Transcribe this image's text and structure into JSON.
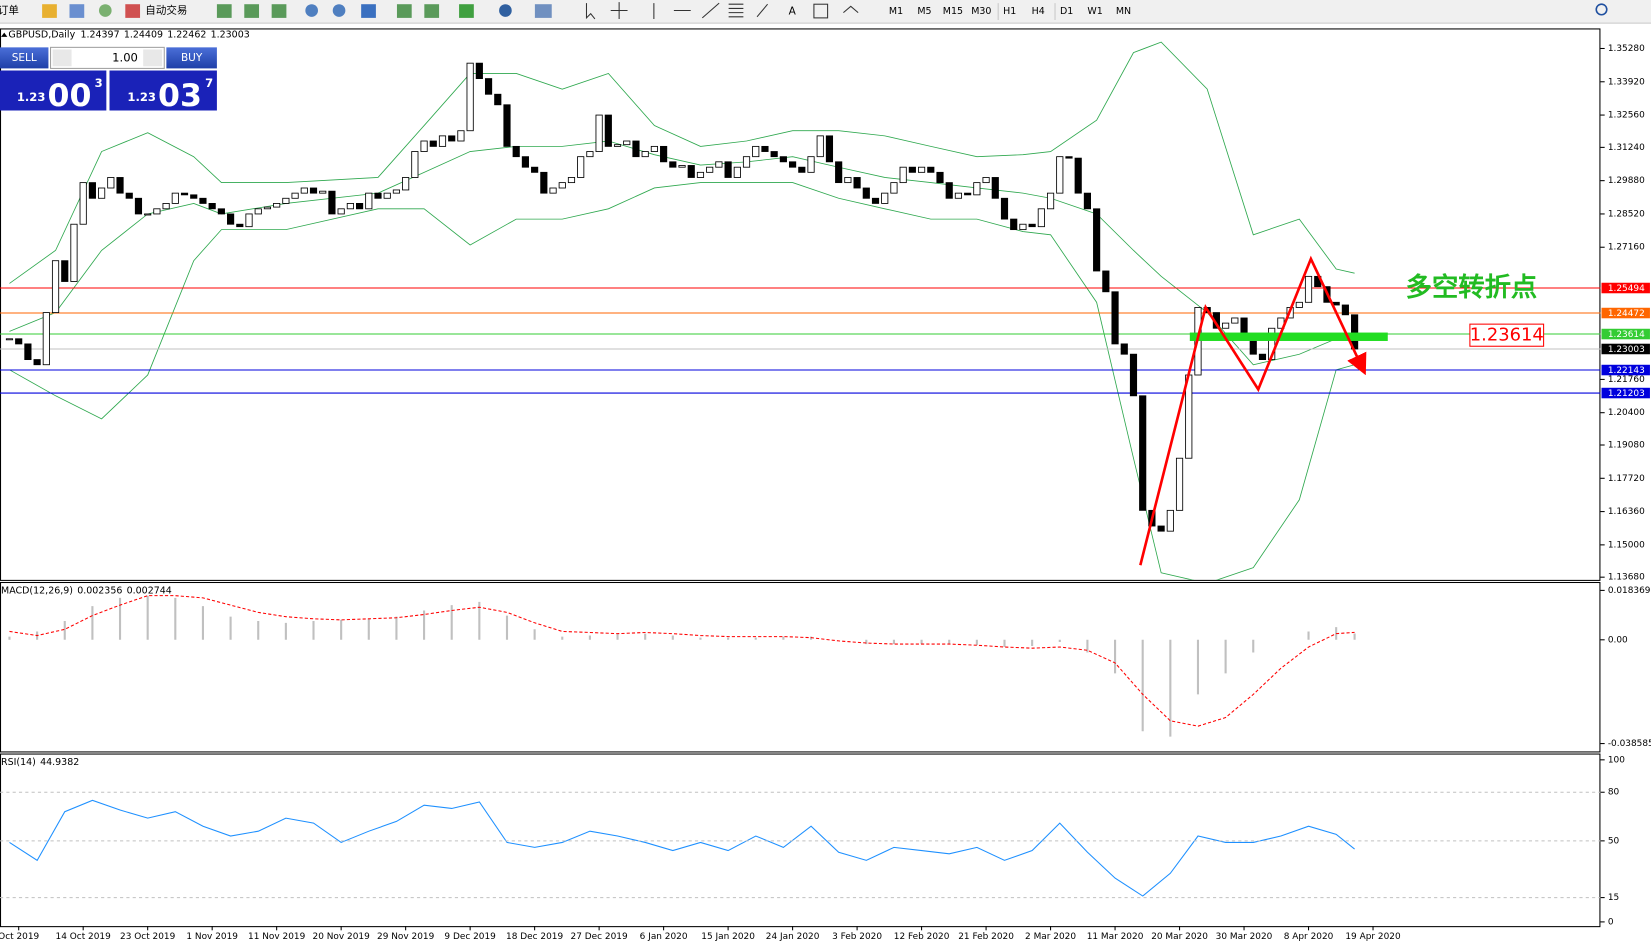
{
  "toolbar": {
    "new_order": "新订单",
    "auto_trading": "自动交易",
    "timeframes": [
      "M1",
      "M5",
      "M15",
      "M30",
      "H1",
      "H4",
      "D1",
      "W1",
      "MN"
    ]
  },
  "trade_panel": {
    "sell": "SELL",
    "buy": "BUY",
    "lots": "1.00",
    "bid_big": "1.23",
    "bid_pips": "00",
    "bid_frac": "3",
    "ask_big": "1.23",
    "ask_pips": "03",
    "ask_frac": "7"
  },
  "chart_data": [
    {
      "type": "candlestick",
      "title": "GBPUSD,Daily",
      "header": [
        1.24397,
        1.24409,
        1.22462,
        1.23003
      ],
      "annotation": "多空转折点",
      "ylim": [
        1.1357,
        1.361
      ],
      "yticks": [
        {
          "value": 1.3528,
          "label": "1.35280"
        },
        {
          "value": 1.3392,
          "label": "1.33920"
        },
        {
          "value": 1.3256,
          "label": "1.32560"
        },
        {
          "value": 1.3124,
          "label": "1.31240"
        },
        {
          "value": 1.2988,
          "label": "1.29880"
        },
        {
          "value": 1.2852,
          "label": "1.28520"
        },
        {
          "value": 1.2716,
          "label": "1.27160"
        },
        {
          "value": 1.2176,
          "label": "1.21760"
        },
        {
          "value": 1.204,
          "label": "1.20400"
        },
        {
          "value": 1.1908,
          "label": "1.19080"
        },
        {
          "value": 1.1772,
          "label": "1.17720"
        },
        {
          "value": 1.1636,
          "label": "1.16360"
        },
        {
          "value": 1.15,
          "label": "1.15000"
        },
        {
          "value": 1.1368,
          "label": "1.13680"
        }
      ],
      "xticks": [
        {
          "value": 1,
          "label": "Oct 2019"
        },
        {
          "value": 8,
          "label": "14 Oct 2019"
        },
        {
          "value": 15,
          "label": "23 Oct 2019"
        },
        {
          "value": 22,
          "label": "1 Nov 2019"
        },
        {
          "value": 29,
          "label": "11 Nov 2019"
        },
        {
          "value": 36,
          "label": "20 Nov 2019"
        },
        {
          "value": 43,
          "label": "29 Nov 2019"
        },
        {
          "value": 50,
          "label": "9 Dec 2019"
        },
        {
          "value": 57,
          "label": "18 Dec 2019"
        },
        {
          "value": 64,
          "label": "27 Dec 2019"
        },
        {
          "value": 71,
          "label": "6 Jan 2020"
        },
        {
          "value": 78,
          "label": "15 Jan 2020"
        },
        {
          "value": 85,
          "label": "24 Jan 2020"
        },
        {
          "value": 92,
          "label": "3 Feb 2020"
        },
        {
          "value": 99,
          "label": "12 Feb 2020"
        },
        {
          "value": 106,
          "label": "21 Feb 2020"
        },
        {
          "value": 113,
          "label": "2 Mar 2020"
        },
        {
          "value": 120,
          "label": "11 Mar 2020"
        },
        {
          "value": 127,
          "label": "20 Mar 2020"
        },
        {
          "value": 134,
          "label": "30 Mar 2020"
        },
        {
          "value": 141,
          "label": "8 Apr 2020"
        },
        {
          "value": 148,
          "label": "19 Apr 2020"
        }
      ],
      "up_color": "#ffffff",
      "down_color": "#000000",
      "close": [
        1.2342,
        1.2321,
        1.2257,
        1.2236,
        1.2449,
        1.2661,
        1.2576,
        1.281,
        1.298,
        1.2916,
        1.2958,
        1.3001,
        1.2937,
        1.2916,
        1.2852,
        1.2852,
        1.2873,
        1.2895,
        1.2937,
        1.293,
        1.2916,
        1.2895,
        1.2873,
        1.2852,
        1.281,
        1.28,
        1.2852,
        1.2873,
        1.288,
        1.2895,
        1.2916,
        1.2937,
        1.2958,
        1.2937,
        1.2945,
        1.2852,
        1.2873,
        1.2895,
        1.2873,
        1.2937,
        1.2916,
        1.2937,
        1.295,
        1.3001,
        1.3107,
        1.315,
        1.3128,
        1.3171,
        1.315,
        1.3192,
        1.3468,
        1.3405,
        1.3341,
        1.3298,
        1.3128,
        1.3086,
        1.3043,
        1.3022,
        1.2937,
        1.2958,
        1.298,
        1.3001,
        1.3086,
        1.3107,
        1.3256,
        1.3128,
        1.3135,
        1.315,
        1.3086,
        1.3107,
        1.3128,
        1.3065,
        1.3043,
        1.305,
        1.3001,
        1.3022,
        1.3043,
        1.3065,
        1.3001,
        1.3043,
        1.3086,
        1.3128,
        1.3107,
        1.3086,
        1.3065,
        1.3043,
        1.3022,
        1.3086,
        1.3171,
        1.3065,
        1.298,
        1.3001,
        1.2958,
        1.2916,
        1.2895,
        1.2937,
        1.298,
        1.3043,
        1.3022,
        1.3043,
        1.3022,
        1.298,
        1.2916,
        1.2937,
        1.293,
        1.298,
        1.3001,
        1.2916,
        1.2831,
        1.2788,
        1.281,
        1.28,
        1.2873,
        1.2937,
        1.3086,
        1.308,
        1.2937,
        1.2873,
        1.2619,
        1.2534,
        1.2321,
        1.2279,
        1.2109,
        1.1641,
        1.1577,
        1.1556,
        1.1641,
        1.1854,
        1.2194,
        1.247,
        1.2449,
        1.2385,
        1.2406,
        1.2427,
        1.2364,
        1.2279,
        1.2257,
        1.2385,
        1.2427,
        1.247,
        1.2491,
        1.2597,
        1.2555,
        1.2491,
        1.248,
        1.244,
        1.23003
      ],
      "bands": {
        "color": "#2fa84f",
        "x": [
          0,
          5,
          10,
          15,
          20,
          23,
          30,
          40,
          45,
          50,
          55,
          60,
          65,
          70,
          75,
          80,
          85,
          90,
          95,
          100,
          105,
          110,
          113,
          118,
          122,
          125,
          130,
          135,
          140,
          144,
          146
        ],
        "upper": [
          1.2568,
          1.2703,
          1.3107,
          1.3184,
          1.3086,
          1.298,
          1.298,
          1.3001,
          1.3213,
          1.3426,
          1.3426,
          1.3362,
          1.3426,
          1.3213,
          1.3128,
          1.315,
          1.3192,
          1.3192,
          1.3171,
          1.3128,
          1.3086,
          1.3094,
          1.3107,
          1.3235,
          1.3511,
          1.3554,
          1.3362,
          1.2767,
          1.2831,
          1.2627,
          1.261
        ],
        "middle": [
          1.2372,
          1.2449,
          1.2703,
          1.2852,
          1.2895,
          1.2852,
          1.2895,
          1.2937,
          1.3022,
          1.3107,
          1.3128,
          1.3128,
          1.315,
          1.3094,
          1.3052,
          1.3065,
          1.3086,
          1.3043,
          1.3001,
          1.298,
          1.2958,
          1.2937,
          1.2916,
          1.2852,
          1.2703,
          1.2597,
          1.2449,
          1.2236,
          1.2279,
          1.2342,
          1.2364
        ],
        "lower": [
          1.2215,
          1.2109,
          1.2015,
          1.2194,
          1.2661,
          1.2788,
          1.2788,
          1.2873,
          1.2873,
          1.2725,
          1.2831,
          1.2831,
          1.2873,
          1.2958,
          1.298,
          1.298,
          1.298,
          1.2916,
          1.2873,
          1.2831,
          1.2831,
          1.278,
          1.2767,
          1.2491,
          1.1854,
          1.1386,
          1.1343,
          1.1407,
          1.1684,
          1.2215,
          1.2236
        ]
      },
      "levels": [
        {
          "value": 1.25494,
          "color": "#ff0000"
        },
        {
          "value": 1.24472,
          "color": "#ff6600"
        },
        {
          "value": 1.23614,
          "color": "#33cc33"
        },
        {
          "value": 1.23003,
          "color": "#000000",
          "line_color": "#c0c0c0"
        },
        {
          "value": 1.22143,
          "color": "#0000dd"
        },
        {
          "value": 1.21203,
          "color": "#0000dd"
        }
      ]
    },
    {
      "type": "macd",
      "title": "MACD(12,26,9)",
      "ylim": [
        -0.0415,
        0.0215
      ],
      "yticks": [
        0.018369,
        {
          "value": 0,
          "label": "0.00"
        },
        -0.038585
      ],
      "x": [
        0,
        3,
        6,
        9,
        12,
        15,
        18,
        21,
        24,
        27,
        30,
        33,
        36,
        39,
        42,
        45,
        48,
        51,
        54,
        57,
        60,
        63,
        66,
        69,
        72,
        75,
        78,
        81,
        84,
        87,
        90,
        93,
        96,
        99,
        102,
        105,
        108,
        111,
        114,
        117,
        120,
        123,
        126,
        129,
        132,
        135,
        138,
        141,
        144,
        146
      ],
      "series": [
        {
          "color": "#c0c0c0",
          "values": [
            0.0012,
            0.0031,
            0.007,
            0.0125,
            0.0156,
            0.0164,
            0.0156,
            0.0125,
            0.0086,
            0.007,
            0.0063,
            0.007,
            0.0074,
            0.0078,
            0.0086,
            0.0109,
            0.0129,
            0.0141,
            0.009,
            0.0039,
            0.0012,
            0.0016,
            0.0023,
            0.0023,
            0.0016,
            0.0008,
            0.0008,
            0.0008,
            0.0012,
            0.0012,
            0,
            -0.0016,
            -0.0016,
            -0.0016,
            -0.0016,
            -0.002,
            -0.0027,
            -0.0023,
            -0.0008,
            -0.0047,
            -0.0125,
            -0.034,
            -0.036,
            -0.0203,
            -0.0125,
            -0.0047,
            0,
            0.0031,
            0.0047,
            0.002356
          ]
        },
        {
          "color": "#ff0000",
          "values": [
            0.0031,
            0.0016,
            0.0039,
            0.009,
            0.0129,
            0.0164,
            0.0164,
            0.0156,
            0.0129,
            0.0102,
            0.0086,
            0.0078,
            0.0074,
            0.0078,
            0.0082,
            0.0094,
            0.0109,
            0.0121,
            0.0102,
            0.0063,
            0.0031,
            0.0027,
            0.0023,
            0.0027,
            0.0023,
            0.0016,
            0.0012,
            0.0012,
            0.0012,
            0.0008,
            -0.0004,
            -0.0012,
            -0.0016,
            -0.0016,
            -0.0016,
            -0.002,
            -0.0027,
            -0.0031,
            -0.0027,
            -0.0039,
            -0.0086,
            -0.0203,
            -0.0301,
            -0.0321,
            -0.0289,
            -0.0203,
            -0.0106,
            -0.0027,
            0.0023,
            0.002744
          ]
        }
      ]
    },
    {
      "type": "line",
      "title": "RSI(14)",
      "color": "#1e90ff",
      "ylim": [
        0,
        100
      ],
      "yticks": [
        100,
        80,
        50,
        15,
        0
      ],
      "x": [
        0,
        3,
        6,
        9,
        12,
        15,
        18,
        21,
        24,
        27,
        30,
        33,
        36,
        39,
        42,
        45,
        48,
        51,
        54,
        57,
        60,
        63,
        66,
        69,
        72,
        75,
        78,
        81,
        84,
        87,
        90,
        93,
        96,
        99,
        102,
        105,
        108,
        111,
        114,
        117,
        120,
        123,
        126,
        129,
        132,
        135,
        138,
        141,
        144,
        146
      ],
      "values": [
        49,
        38,
        68,
        75,
        69,
        64,
        68,
        59,
        53,
        56,
        64,
        61,
        49,
        56,
        62,
        72,
        70,
        74,
        49,
        46,
        49,
        56,
        53,
        49,
        44,
        49,
        44,
        53,
        46,
        59,
        43,
        38,
        46,
        44,
        42,
        46,
        38,
        44,
        61,
        43,
        27,
        16,
        30,
        53,
        49,
        49,
        53,
        59,
        54,
        44.9382
      ]
    }
  ]
}
